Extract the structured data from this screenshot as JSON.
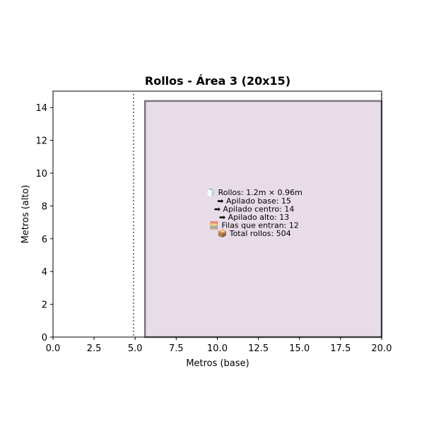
{
  "chart_data": {
    "type": "area",
    "title": "Rollos - Área 3 (20x15)",
    "xlabel": "Metros (base)",
    "ylabel": "Metros (alto)",
    "xlim": [
      0,
      20
    ],
    "ylim": [
      0,
      15
    ],
    "xticks": [
      0,
      2.5,
      5,
      7.5,
      10,
      12.5,
      15,
      17.5,
      20
    ],
    "xtick_labels": [
      "0.0",
      "2.5",
      "5.0",
      "7.5",
      "10.0",
      "12.5",
      "15.0",
      "17.5",
      "20.0"
    ],
    "yticks": [
      0,
      2,
      4,
      6,
      8,
      10,
      12,
      14
    ],
    "ytick_labels": [
      "0",
      "2",
      "4",
      "6",
      "8",
      "10",
      "12",
      "14"
    ],
    "grid": false,
    "vertical_lines": [
      {
        "x": 4.9,
        "style": "dotted"
      },
      {
        "x": 20,
        "style": "dotted"
      }
    ],
    "filled_region": {
      "x0": 5.6,
      "x1": 20,
      "y0": 0,
      "y1": 14.4,
      "fill_color": "#e8dce8",
      "edge_color": "#7a767a"
    },
    "annotation": {
      "x": 12.5,
      "y": 7.5,
      "lines": [
        "🧻 Rollos: 1.2m × 0.96m",
        "➡ Apilado base: 15",
        "➡ Apilado centro: 14",
        "➡ Apilado alto: 13",
        "🧮 Filas que entran: 12",
        "📦 Total rollos: 504"
      ]
    }
  }
}
